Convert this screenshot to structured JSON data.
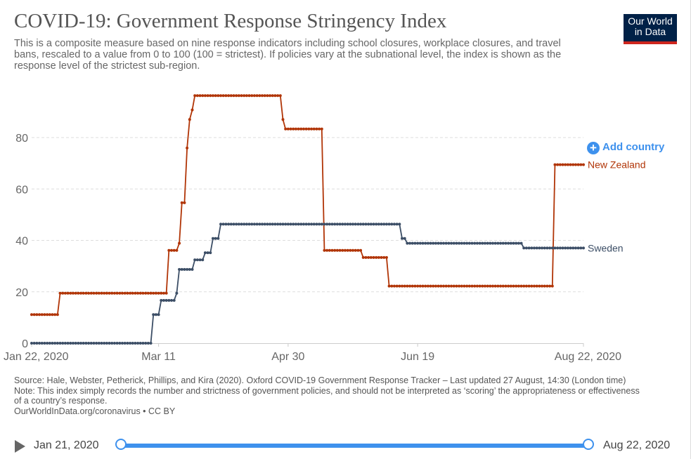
{
  "title": "COVID-19: Government Response Stringency Index",
  "subtitle": "This is a composite measure based on nine response indicators including school closures, workplace closures, and travel bans, rescaled to a value from 0 to 100 (100 = strictest). If policies vary at the subnational level, the index is shown as the response level of the strictest sub-region.",
  "logo": {
    "line1": "Our World",
    "line2": "in Data"
  },
  "add_country": "Add country",
  "footer": {
    "source": "Source: Hale, Webster, Petherick, Phillips, and Kira (2020). Oxford COVID-19 Government Response Tracker – Last updated 27 August, 14:30 (London time)",
    "note": "Note: This index simply records the number and strictness of government policies, and should not be interpreted as ‘scoring’ the appropriateness or effectiveness of a country’s response.",
    "link": "OurWorldInData.org/coronavirus • CC BY"
  },
  "timeline": {
    "start": "Jan 21, 2020",
    "end": "Aug 22, 2020",
    "play_icon": "play-icon"
  },
  "chart_data": {
    "type": "line",
    "title": "COVID-19: Government Response Stringency Index",
    "x_range": [
      "2020-01-22",
      "2020-08-22"
    ],
    "x_ticks": [
      {
        "date": "2020-01-22",
        "label": "Jan 22, 2020"
      },
      {
        "date": "2020-03-11",
        "label": "Mar 11"
      },
      {
        "date": "2020-04-30",
        "label": "Apr 30"
      },
      {
        "date": "2020-06-19",
        "label": "Jun 19"
      },
      {
        "date": "2020-08-22",
        "label": "Aug 22, 2020"
      }
    ],
    "y_ticks": [
      0,
      20,
      40,
      60,
      80
    ],
    "ylim": [
      0,
      100
    ],
    "grid": true,
    "series": [
      {
        "name": "New Zealand",
        "color": "#b13507",
        "steps": [
          [
            "2020-01-22",
            11.11
          ],
          [
            "2020-02-02",
            19.44
          ],
          [
            "2020-03-15",
            36.11
          ],
          [
            "2020-03-19",
            38.89
          ],
          [
            "2020-03-20",
            54.63
          ],
          [
            "2020-03-22",
            75.93
          ],
          [
            "2020-03-23",
            87.04
          ],
          [
            "2020-03-24",
            90.74
          ],
          [
            "2020-03-25",
            96.3
          ],
          [
            "2020-04-28",
            87.04
          ],
          [
            "2020-04-29",
            83.33
          ],
          [
            "2020-05-14",
            36.11
          ],
          [
            "2020-05-29",
            33.33
          ],
          [
            "2020-06-08",
            22.22
          ],
          [
            "2020-08-11",
            69.44
          ],
          [
            "2020-08-22",
            69.44
          ]
        ]
      },
      {
        "name": "Sweden",
        "color": "#3c4e66",
        "steps": [
          [
            "2020-01-22",
            0
          ],
          [
            "2020-03-09",
            11.11
          ],
          [
            "2020-03-12",
            16.67
          ],
          [
            "2020-03-18",
            19.44
          ],
          [
            "2020-03-19",
            28.7
          ],
          [
            "2020-03-25",
            32.41
          ],
          [
            "2020-03-29",
            35.19
          ],
          [
            "2020-04-01",
            40.74
          ],
          [
            "2020-04-04",
            46.3
          ],
          [
            "2020-06-13",
            40.74
          ],
          [
            "2020-06-15",
            38.89
          ],
          [
            "2020-07-30",
            37.04
          ],
          [
            "2020-08-22",
            37.04
          ]
        ]
      }
    ]
  }
}
